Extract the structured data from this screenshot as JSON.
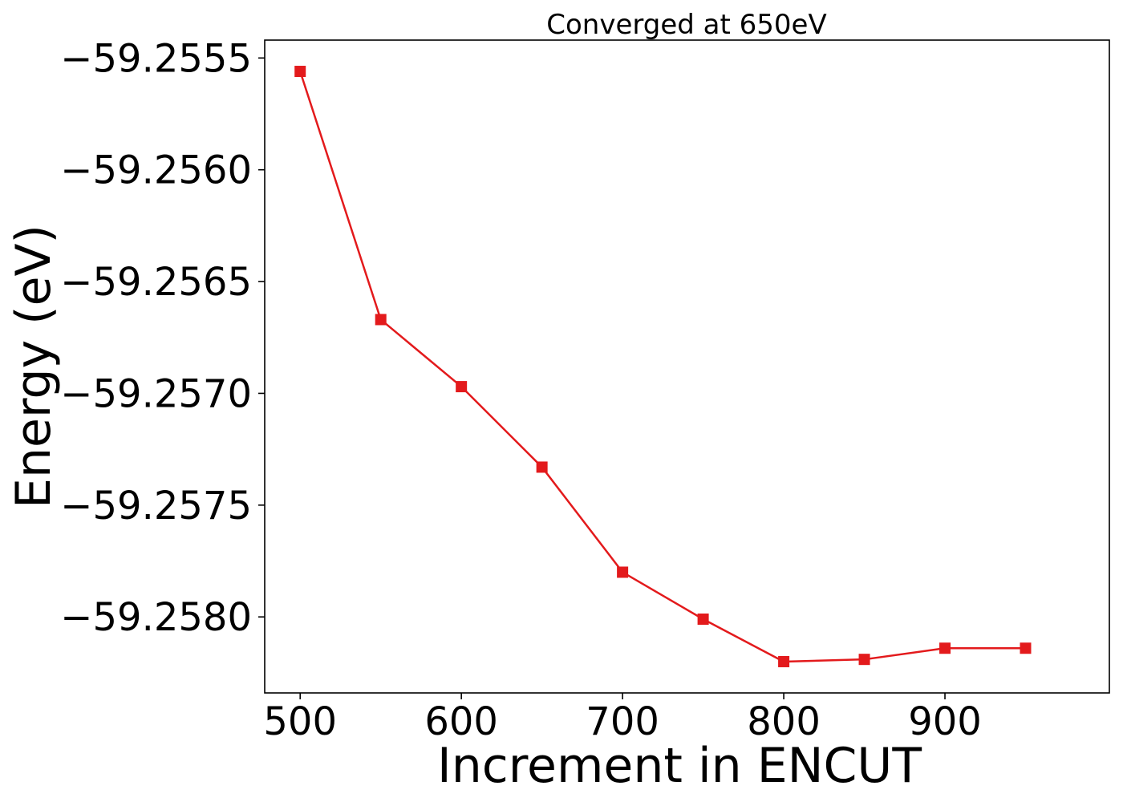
{
  "chart_data": {
    "type": "line",
    "title": "Converged at 650eV",
    "xlabel": "Increment in ENCUT",
    "ylabel": "Energy (eV)",
    "xlim": [
      478,
      1002
    ],
    "ylim": [
      -59.25834,
      -59.25542
    ],
    "xticks": [
      500,
      600,
      700,
      800,
      900
    ],
    "yticks": [
      -59.2555,
      -59.256,
      -59.2565,
      -59.257,
      -59.2575,
      -59.258
    ],
    "ytick_labels": [
      "−59.2555",
      "−59.2560",
      "−59.2565",
      "−59.2570",
      "−59.2575",
      "−59.2580"
    ],
    "grid": false,
    "series": [
      {
        "color": "#e31a1c",
        "marker": "square",
        "x": [
          500,
          550,
          600,
          650,
          700,
          750,
          800,
          850,
          900,
          950
        ],
        "y": [
          -59.25556,
          -59.25667,
          -59.25697,
          -59.25733,
          -59.2578,
          -59.25801,
          -59.2582,
          -59.25819,
          -59.25814,
          -59.25814
        ]
      }
    ]
  }
}
